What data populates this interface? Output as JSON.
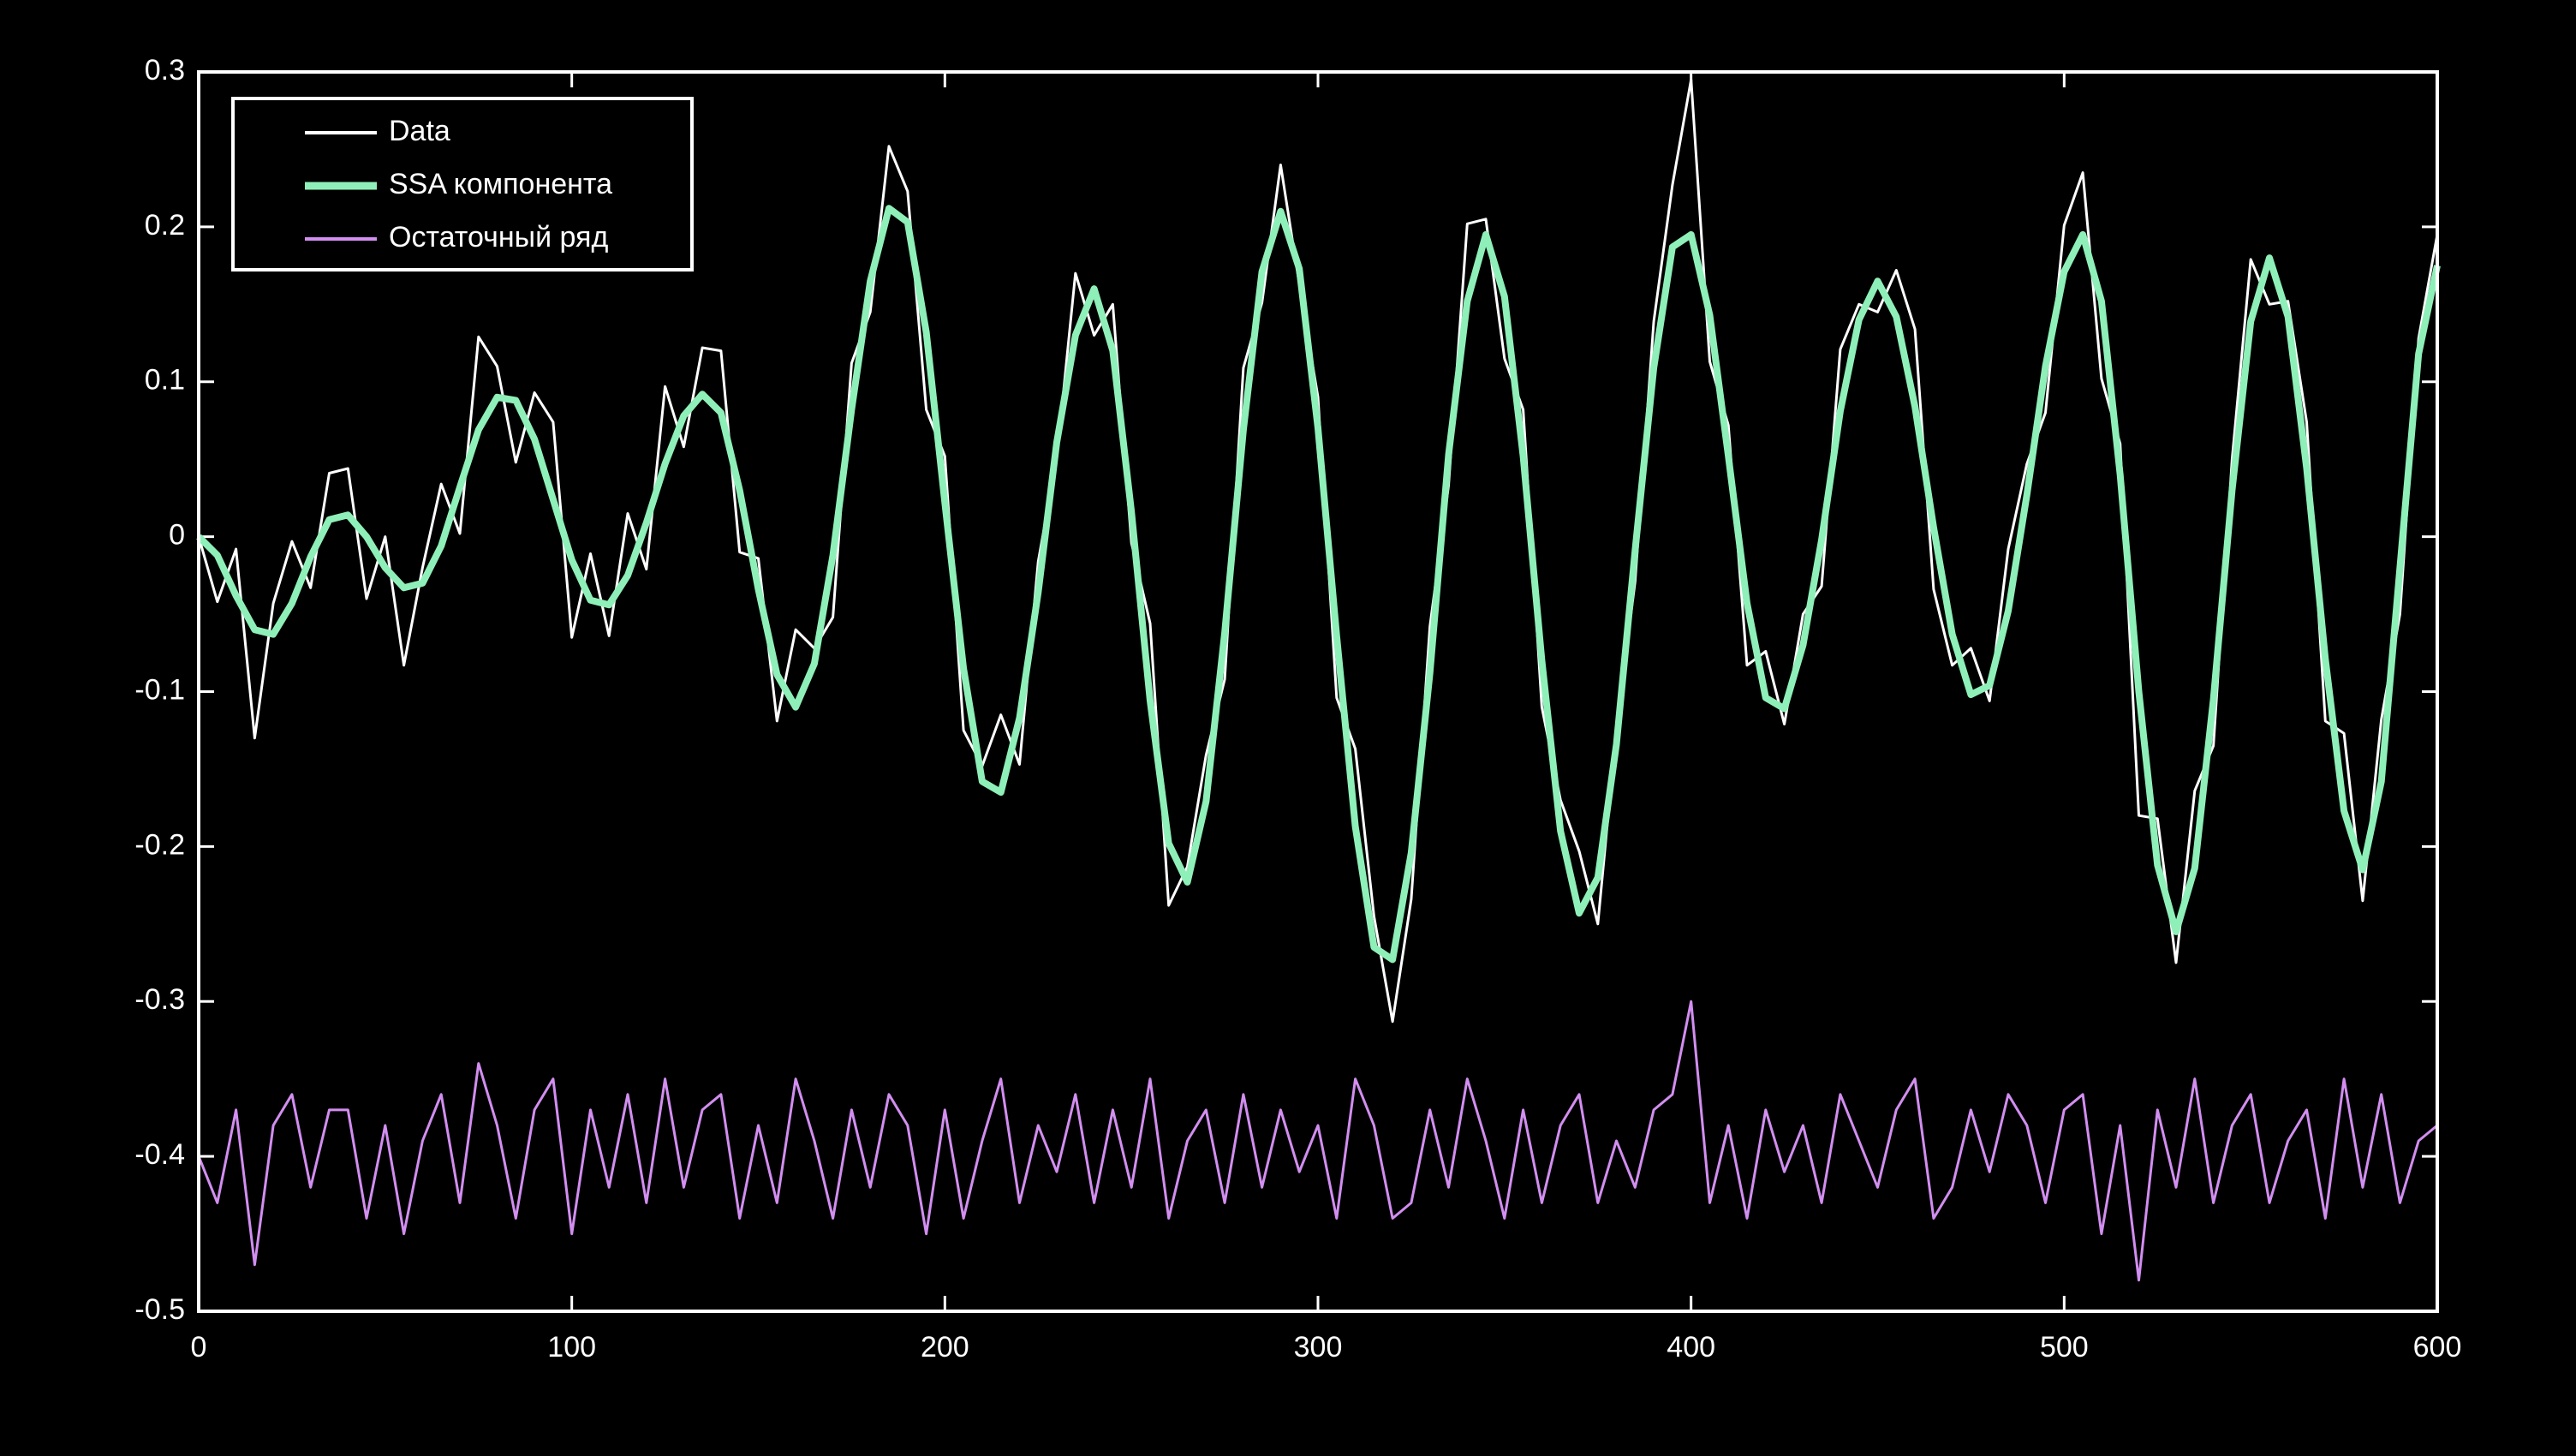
{
  "chart_data": {
    "type": "line",
    "x": [
      0,
      5,
      10,
      15,
      20,
      25,
      30,
      35,
      40,
      45,
      50,
      55,
      60,
      65,
      70,
      75,
      80,
      85,
      90,
      95,
      100,
      105,
      110,
      115,
      120,
      125,
      130,
      135,
      140,
      145,
      150,
      155,
      160,
      165,
      170,
      175,
      180,
      185,
      190,
      195,
      200,
      205,
      210,
      215,
      220,
      225,
      230,
      235,
      240,
      245,
      250,
      255,
      260,
      265,
      270,
      275,
      280,
      285,
      290,
      295,
      300,
      305,
      310,
      315,
      320,
      325,
      330,
      335,
      340,
      345,
      350,
      355,
      360,
      365,
      370,
      375,
      380,
      385,
      390,
      395,
      400,
      405,
      410,
      415,
      420,
      425,
      430,
      435,
      440,
      445,
      450,
      455,
      460,
      465,
      470,
      475,
      480,
      485,
      490,
      495,
      500,
      505,
      510,
      515,
      520,
      525,
      530,
      535,
      540,
      545,
      550,
      555,
      560,
      565,
      570,
      575,
      580,
      585,
      590,
      595,
      600
    ],
    "series": [
      {
        "name": "Data",
        "color": "#ffffff",
        "values": [
          0,
          -0.042,
          -0.008,
          -0.13,
          -0.043,
          -0.003,
          -0.033,
          0.041,
          0.044,
          -0.04,
          0,
          -0.083,
          -0.02,
          0.034,
          0.002,
          0.129,
          0.11,
          0.048,
          0.093,
          0.074,
          -0.065,
          -0.011,
          -0.064,
          0.015,
          -0.021,
          0.097,
          0.058,
          0.122,
          0.12,
          -0.01,
          -0.014,
          -0.119,
          -0.06,
          -0.072,
          -0.052,
          0.112,
          0.145,
          0.252,
          0.223,
          0.082,
          0.052,
          -0.125,
          -0.148,
          -0.115,
          -0.147,
          -0.016,
          0.051,
          0.17,
          0.13,
          0.15,
          -0.004,
          -0.056,
          -0.238,
          -0.213,
          -0.141,
          -0.092,
          0.109,
          0.151,
          0.24,
          0.163,
          0.09,
          -0.104,
          -0.137,
          -0.245,
          -0.313,
          -0.234,
          -0.058,
          0.033,
          0.202,
          0.205,
          0.115,
          0.082,
          -0.11,
          -0.17,
          -0.203,
          -0.25,
          -0.124,
          -0.029,
          0.139,
          0.227,
          0.295,
          0.113,
          0.072,
          -0.083,
          -0.074,
          -0.121,
          -0.05,
          -0.032,
          0.121,
          0.15,
          0.145,
          0.172,
          0.134,
          -0.034,
          -0.083,
          -0.072,
          -0.106,
          -0.008,
          0.047,
          0.08,
          0.201,
          0.235,
          0.102,
          0.06,
          -0.18,
          -0.182,
          -0.275,
          -0.164,
          -0.135,
          0.05,
          0.179,
          0.15,
          0.152,
          0.074,
          -0.119,
          -0.127,
          -0.235,
          -0.118,
          -0.05,
          0.128,
          0.195
        ]
      },
      {
        "name": "SSA компонента",
        "color": "#8ef0b8",
        "values": [
          0,
          -0.012,
          -0.038,
          -0.06,
          -0.063,
          -0.043,
          -0.013,
          0.011,
          0.014,
          0,
          -0.02,
          -0.033,
          -0.03,
          -0.006,
          0.032,
          0.069,
          0.09,
          0.088,
          0.063,
          0.024,
          -0.015,
          -0.041,
          -0.044,
          -0.025,
          0.009,
          0.047,
          0.078,
          0.092,
          0.08,
          0.03,
          -0.034,
          -0.089,
          -0.11,
          -0.082,
          -0.012,
          0.082,
          0.165,
          0.212,
          0.203,
          0.132,
          0.022,
          -0.085,
          -0.158,
          -0.165,
          -0.117,
          -0.036,
          0.061,
          0.13,
          0.16,
          0.12,
          0.016,
          -0.106,
          -0.198,
          -0.223,
          -0.171,
          -0.062,
          0.069,
          0.171,
          0.21,
          0.173,
          0.07,
          -0.064,
          -0.187,
          -0.265,
          -0.273,
          -0.204,
          -0.088,
          0.053,
          0.152,
          0.195,
          0.155,
          0.052,
          -0.08,
          -0.19,
          -0.243,
          -0.22,
          -0.134,
          -0.009,
          0.109,
          0.187,
          0.195,
          0.143,
          0.052,
          -0.043,
          -0.104,
          -0.111,
          -0.07,
          -0.002,
          0.081,
          0.14,
          0.165,
          0.142,
          0.084,
          0.006,
          -0.063,
          -0.102,
          -0.096,
          -0.048,
          0.027,
          0.11,
          0.171,
          0.195,
          0.152,
          0.04,
          -0.1,
          -0.212,
          -0.255,
          -0.214,
          -0.105,
          0.03,
          0.139,
          0.18,
          0.142,
          0.044,
          -0.079,
          -0.177,
          -0.215,
          -0.158,
          -0.02,
          0.118,
          0.175
        ]
      },
      {
        "name": "Остаточный ряд",
        "color": "#d28ef0",
        "values": [
          -0.4,
          -0.43,
          -0.37,
          -0.47,
          -0.38,
          -0.36,
          -0.42,
          -0.37,
          -0.37,
          -0.44,
          -0.38,
          -0.45,
          -0.39,
          -0.36,
          -0.43,
          -0.34,
          -0.38,
          -0.44,
          -0.37,
          -0.35,
          -0.45,
          -0.37,
          -0.42,
          -0.36,
          -0.43,
          -0.35,
          -0.42,
          -0.37,
          -0.36,
          -0.44,
          -0.38,
          -0.43,
          -0.35,
          -0.39,
          -0.44,
          -0.37,
          -0.42,
          -0.36,
          -0.38,
          -0.45,
          -0.37,
          -0.44,
          -0.39,
          -0.35,
          -0.43,
          -0.38,
          -0.41,
          -0.36,
          -0.43,
          -0.37,
          -0.42,
          -0.35,
          -0.44,
          -0.39,
          -0.37,
          -0.43,
          -0.36,
          -0.42,
          -0.37,
          -0.41,
          -0.38,
          -0.44,
          -0.35,
          -0.38,
          -0.44,
          -0.43,
          -0.37,
          -0.42,
          -0.35,
          -0.39,
          -0.44,
          -0.37,
          -0.43,
          -0.38,
          -0.36,
          -0.43,
          -0.39,
          -0.42,
          -0.37,
          -0.36,
          -0.3,
          -0.43,
          -0.38,
          -0.44,
          -0.37,
          -0.41,
          -0.38,
          -0.43,
          -0.36,
          -0.39,
          -0.42,
          -0.37,
          -0.35,
          -0.44,
          -0.42,
          -0.37,
          -0.41,
          -0.36,
          -0.38,
          -0.43,
          -0.37,
          -0.36,
          -0.45,
          -0.38,
          -0.48,
          -0.37,
          -0.42,
          -0.35,
          -0.43,
          -0.38,
          -0.36,
          -0.43,
          -0.39,
          -0.37,
          -0.44,
          -0.35,
          -0.42,
          -0.36,
          -0.43,
          -0.39,
          -0.38
        ]
      }
    ],
    "xlim": [
      0,
      600
    ],
    "xticks": [
      0,
      100,
      200,
      300,
      400,
      500,
      600
    ],
    "ylim": [
      -0.5,
      0.3
    ],
    "yticks": [
      -0.5,
      -0.4,
      -0.3,
      -0.2,
      -0.1,
      0,
      0.1,
      0.2,
      0.3
    ],
    "legend": "upper left"
  }
}
